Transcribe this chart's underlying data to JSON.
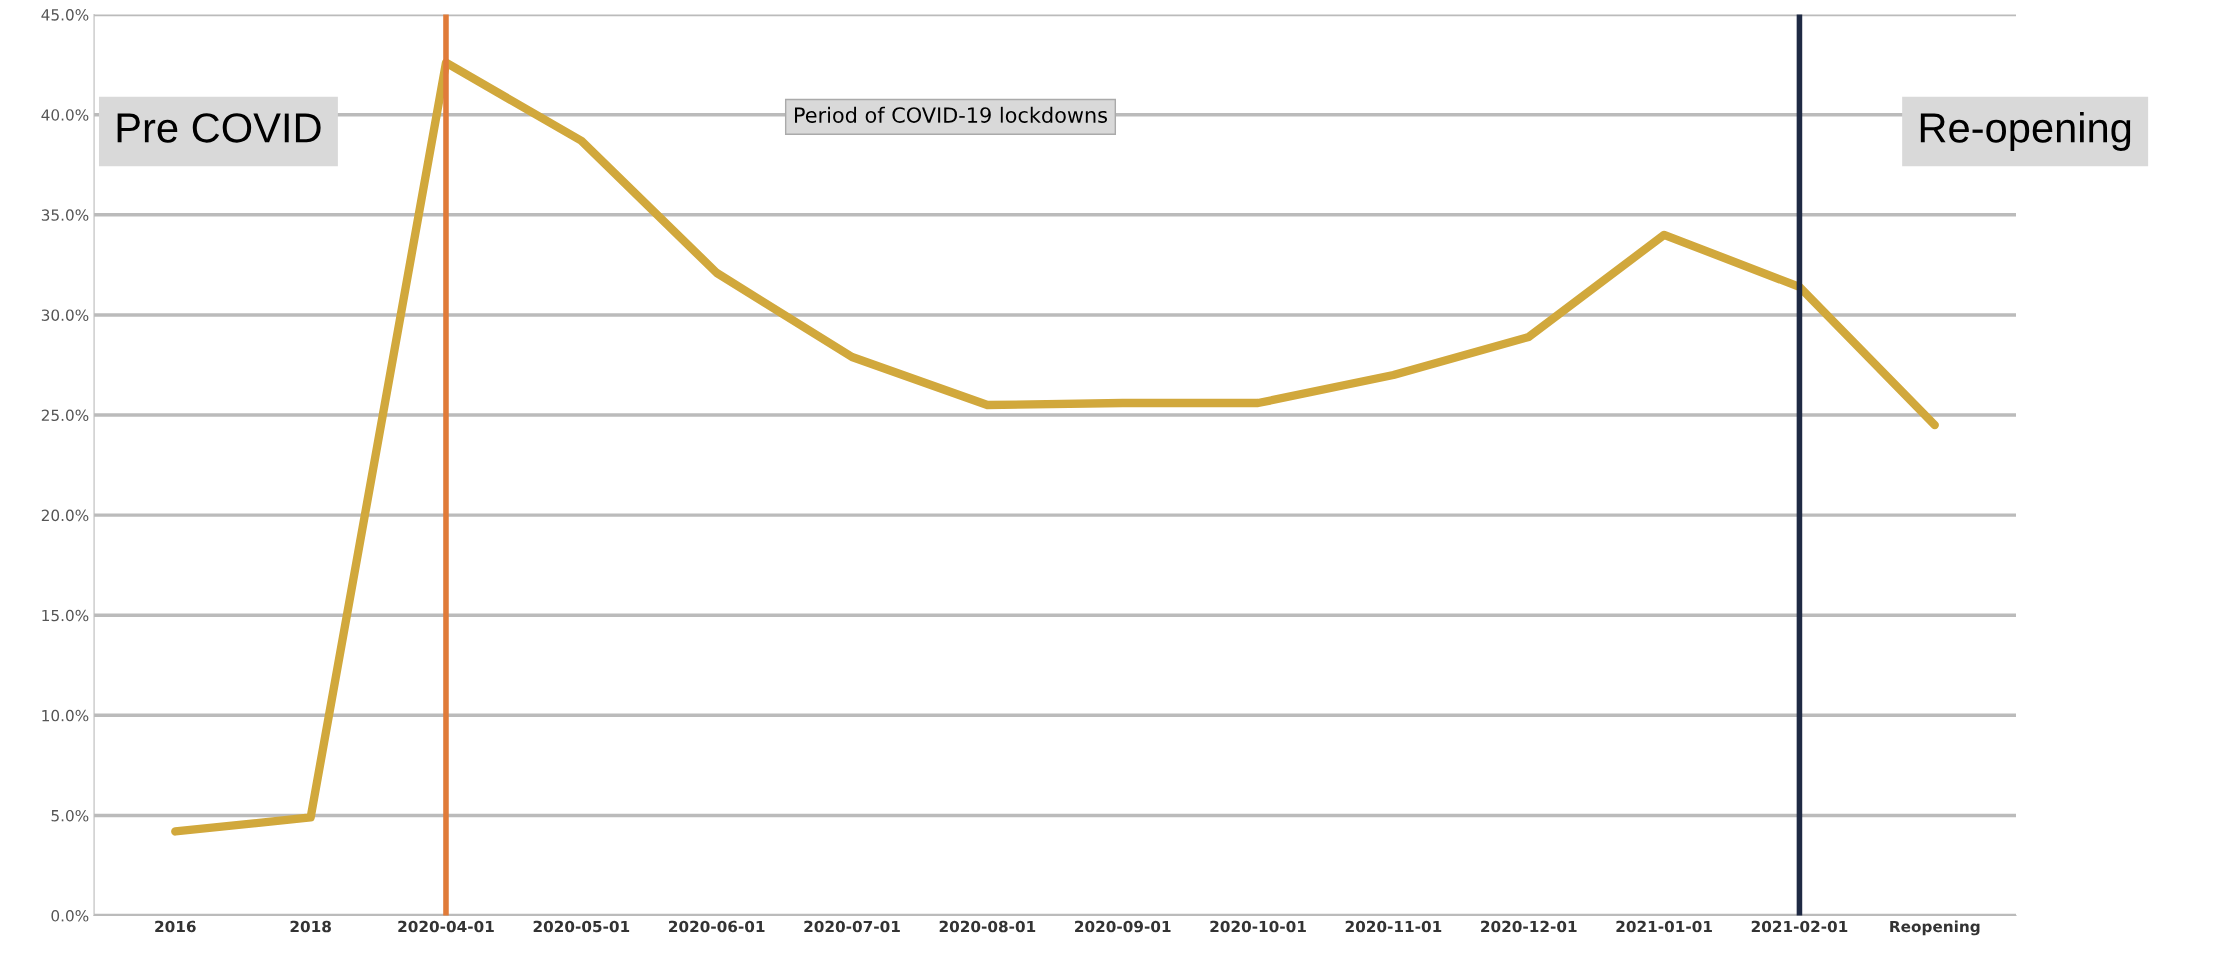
{
  "chart_data": {
    "type": "line",
    "categories": [
      "2016",
      "2018",
      "2020-04-01",
      "2020-05-01",
      "2020-06-01",
      "2020-07-01",
      "2020-08-01",
      "2020-09-01",
      "2020-10-01",
      "2020-11-01",
      "2020-12-01",
      "2021-01-01",
      "2021-02-01",
      "Reopening"
    ],
    "series": [
      {
        "color": "#d1a83c",
        "values": [
          4.2,
          4.9,
          42.6,
          38.7,
          32.1,
          27.9,
          25.5,
          25.6,
          25.6,
          27.0,
          28.9,
          34.0,
          31.4,
          24.5
        ]
      }
    ],
    "ylim": [
      0,
      45
    ],
    "yticks": [
      {
        "value": 0,
        "label": "0.0%"
      },
      {
        "value": 5,
        "label": "5.0%"
      },
      {
        "value": 10,
        "label": "10.0%"
      },
      {
        "value": 15,
        "label": "15.0%"
      },
      {
        "value": 20,
        "label": "20.0%"
      },
      {
        "value": 25,
        "label": "25.0%"
      },
      {
        "value": 30,
        "label": "30.0%"
      },
      {
        "value": 35,
        "label": "35.0%"
      },
      {
        "value": 40,
        "label": "40.0%"
      },
      {
        "value": 45,
        "label": "45.0%"
      }
    ],
    "ref_lines": [
      {
        "axis": "x",
        "value": "2020-04-01",
        "color": "#e07b39"
      },
      {
        "axis": "x",
        "value": "2021-02-01",
        "color": "#1f2a44"
      }
    ],
    "annotations": [
      "Pre COVID",
      "Period of COVID-19 lockdowns",
      "Re-opening"
    ],
    "grid": "y",
    "legend": false,
    "marker": "none",
    "line_style": "solid"
  }
}
